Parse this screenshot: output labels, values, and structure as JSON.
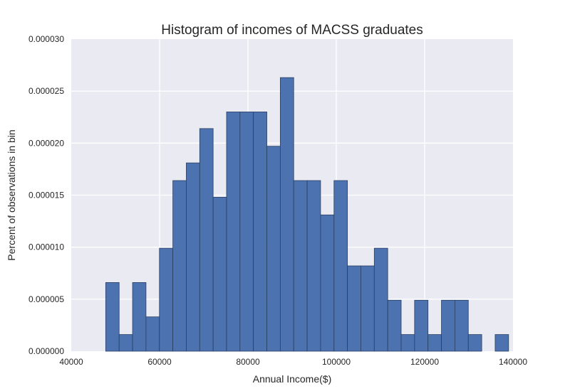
{
  "chart_data": {
    "type": "bar",
    "title": "Histogram of incomes of MACSS graduates",
    "xlabel": "Annual Income($)",
    "ylabel": "Percent of observations in bin",
    "xlim": [
      40000,
      140000
    ],
    "ylim": [
      0,
      3e-05
    ],
    "x_ticks": [
      "40000",
      "60000",
      "80000",
      "100000",
      "120000",
      "140000"
    ],
    "y_ticks": [
      "0.000000",
      "0.000005",
      "0.000010",
      "0.000015",
      "0.000020",
      "0.000025",
      "0.000030"
    ],
    "x_tick_values": [
      40000,
      60000,
      80000,
      100000,
      120000,
      140000
    ],
    "y_tick_values": [
      0,
      5e-06,
      1e-05,
      1.5e-05,
      2e-05,
      2.5e-05,
      3e-05
    ],
    "bin_edges": [
      47800,
      50840,
      53880,
      56920,
      59960,
      63000,
      66040,
      69080,
      72120,
      75160,
      78200,
      81240,
      84280,
      87320,
      90360,
      93400,
      96440,
      99480,
      102520,
      105560,
      108600,
      111640,
      114680,
      117720,
      120760,
      123800,
      126840,
      129880,
      132920,
      135960,
      139000
    ],
    "values": [
      6.6e-06,
      1.6e-06,
      6.6e-06,
      3.3e-06,
      9.9e-06,
      1.64e-05,
      1.81e-05,
      2.14e-05,
      1.48e-05,
      2.3e-05,
      2.3e-05,
      2.3e-05,
      1.97e-05,
      2.63e-05,
      1.64e-05,
      1.64e-05,
      1.31e-05,
      1.64e-05,
      8.2e-06,
      8.2e-06,
      9.9e-06,
      4.9e-06,
      1.6e-06,
      4.9e-06,
      1.6e-06,
      4.9e-06,
      4.9e-06,
      1.6e-06,
      0,
      1.6e-06
    ],
    "grid": true,
    "colors": {
      "bar": "#4c72b0",
      "bar_edge": "#2a3f63",
      "plot_bg": "#eaeaf2",
      "grid": "#ffffff",
      "text": "#262626"
    }
  }
}
